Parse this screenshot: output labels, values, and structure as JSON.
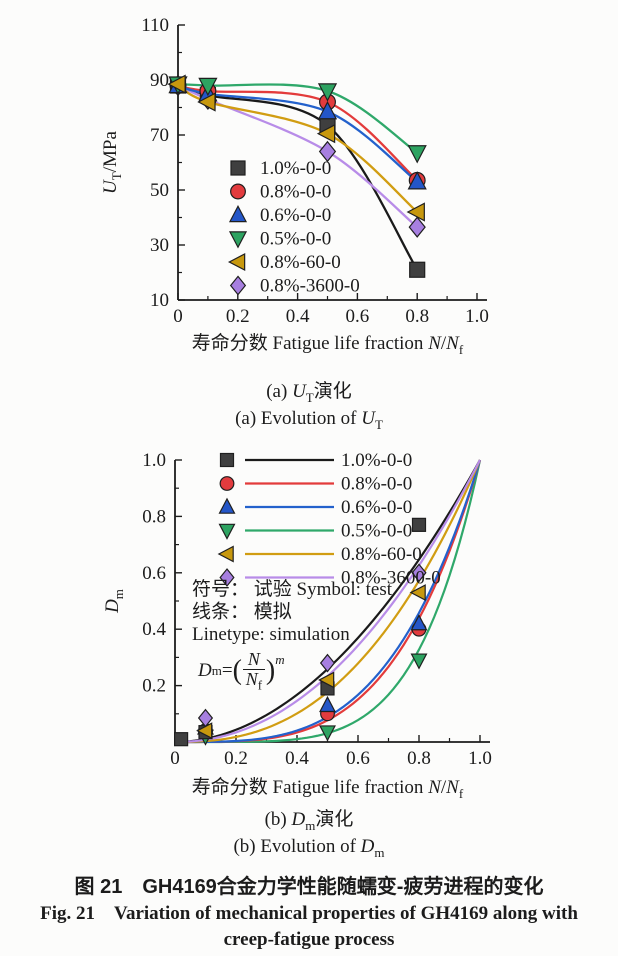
{
  "figure": {
    "background": "#fcfcfb",
    "text_color": "#1c1c1c"
  },
  "chart_data": [
    {
      "id": "a",
      "type": "line",
      "title": "",
      "xlabel_parts": [
        {
          "t": "寿命分数 Fatigue life fraction "
        },
        {
          "t": "N",
          "i": 1
        },
        {
          "t": "/"
        },
        {
          "t": "N",
          "i": 1
        },
        {
          "t": "f",
          "sub": 1
        }
      ],
      "ylabel_parts": [
        {
          "t": "U",
          "i": 1
        },
        {
          "t": "T",
          "sub": 1
        },
        {
          "t": "/MPa"
        }
      ],
      "xlim": [
        0,
        1.0
      ],
      "ylim": [
        10,
        110
      ],
      "grid": false,
      "legend_position": "inside lower-left, markers only",
      "xticks": {
        "major": [
          0,
          0.2,
          0.4,
          0.6,
          0.8,
          1.0
        ],
        "minor": [
          0.1,
          0.3,
          0.5,
          0.7,
          0.9
        ],
        "labels": [
          "0",
          "0.2",
          "0.4",
          "0.6",
          "0.8",
          "1.0"
        ]
      },
      "yticks": {
        "major": [
          10,
          30,
          50,
          70,
          90,
          110
        ],
        "minor": [
          20,
          40,
          60,
          80,
          100
        ],
        "labels": [
          "10",
          "30",
          "50",
          "70",
          "90",
          "110"
        ]
      },
      "x": [
        0,
        0.1,
        0.5,
        0.8
      ],
      "draw_order": [
        0,
        1,
        5,
        2,
        3,
        4
      ],
      "series": [
        {
          "name": "1.0%-0-0",
          "marker": "square",
          "color": "#1a1a1a",
          "marker_color": "#3f3f3f",
          "values": [
            88,
            84.5,
            73.5,
            21
          ]
        },
        {
          "name": "0.8%-0-0",
          "marker": "circle",
          "color": "#e33b3b",
          "marker_color": "#e23b3e",
          "values": [
            88,
            86,
            82,
            53.5
          ]
        },
        {
          "name": "0.6%-0-0",
          "marker": "triangle-up",
          "color": "#2361cc",
          "marker_color": "#2456c8",
          "values": [
            88,
            85,
            78.5,
            53
          ]
        },
        {
          "name": "0.5%-0-0",
          "marker": "triangle-down",
          "color": "#2fa86a",
          "marker_color": "#2da361",
          "values": [
            88.5,
            88,
            86,
            63.5
          ]
        },
        {
          "name": "0.8%-60-0",
          "marker": "triangle-left",
          "color": "#d19d12",
          "marker_color": "#c7980e",
          "values": [
            88.5,
            82,
            70.5,
            42
          ]
        },
        {
          "name": "0.8%-3600-0",
          "marker": "diamond",
          "color": "#b88ce8",
          "marker_color": "#a77fe0",
          "values": [
            88,
            83,
            64,
            36.5
          ]
        }
      ]
    },
    {
      "id": "b",
      "type": "scatter+power-curves",
      "title": "",
      "xlabel_parts": [
        {
          "t": "寿命分数 Fatigue life fraction "
        },
        {
          "t": "N",
          "i": 1
        },
        {
          "t": "/"
        },
        {
          "t": "N",
          "i": 1
        },
        {
          "t": "f",
          "sub": 1
        }
      ],
      "ylabel_parts": [
        {
          "t": "D",
          "i": 1
        },
        {
          "t": "m",
          "sub": 1
        }
      ],
      "xlim": [
        0,
        1.0
      ],
      "ylim": [
        0,
        1.0
      ],
      "grid": false,
      "legend_position": "inside upper-left, marker + line",
      "xticks": {
        "major": [
          0,
          0.2,
          0.4,
          0.6,
          0.8,
          1.0
        ],
        "minor": [
          0.1,
          0.3,
          0.5,
          0.7,
          0.9
        ],
        "labels": [
          "0",
          "0.2",
          "0.4",
          "0.6",
          "0.8",
          "1.0"
        ]
      },
      "yticks": {
        "major": [
          0.2,
          0.4,
          0.6,
          0.8,
          1.0
        ],
        "minor": [
          0.1,
          0.3,
          0.5,
          0.7,
          0.9
        ],
        "labels": [
          "0.2",
          "0.4",
          "0.6",
          "0.8",
          "1.0"
        ]
      },
      "curve_draw_order": [
        3,
        1,
        2,
        4,
        0,
        5
      ],
      "marker_draw_order": [
        3,
        1,
        2,
        0,
        4,
        5
      ],
      "series": [
        {
          "name": "1.0%-0-0",
          "marker": "square",
          "color": "#1a1a1a",
          "marker_color": "#3f3f3f",
          "exponent_m": 1.95,
          "test_points": [
            [
              0.02,
              0.01
            ],
            [
              0.1,
              0.035
            ],
            [
              0.5,
              0.19
            ],
            [
              0.8,
              0.77
            ]
          ]
        },
        {
          "name": "0.8%-0-0",
          "marker": "circle",
          "color": "#e33b3b",
          "marker_color": "#e23b3e",
          "exponent_m": 3.7,
          "test_points": [
            [
              0.1,
              0.04
            ],
            [
              0.5,
              0.1
            ],
            [
              0.8,
              0.4
            ]
          ]
        },
        {
          "name": "0.6%-0-0",
          "marker": "triangle-up",
          "color": "#2361cc",
          "marker_color": "#2456c8",
          "exponent_m": 3.5,
          "test_points": [
            [
              0.1,
              0.05
            ],
            [
              0.5,
              0.13
            ],
            [
              0.8,
              0.42
            ]
          ]
        },
        {
          "name": "0.5%-0-0",
          "marker": "triangle-down",
          "color": "#2fa86a",
          "marker_color": "#2da361",
          "exponent_m": 5.0,
          "test_points": [
            [
              0.1,
              0.02
            ],
            [
              0.5,
              0.035
            ],
            [
              0.8,
              0.29
            ]
          ]
        },
        {
          "name": "0.8%-60-0",
          "marker": "triangle-left",
          "color": "#d19d12",
          "marker_color": "#c7980e",
          "exponent_m": 2.5,
          "test_points": [
            [
              0.1,
              0.04
            ],
            [
              0.5,
              0.22
            ],
            [
              0.8,
              0.53
            ]
          ]
        },
        {
          "name": "0.8%-3600-0",
          "marker": "diamond",
          "color": "#b88ce8",
          "marker_color": "#a77fe0",
          "exponent_m": 2.1,
          "test_points": [
            [
              0.1,
              0.085
            ],
            [
              0.5,
              0.28
            ],
            [
              0.8,
              0.6
            ]
          ]
        }
      ],
      "legend_notes": [
        "符号： 试验 Symbol: test",
        "线条： 模拟",
        "Linetype: simulation"
      ],
      "formula": {
        "lhs": "D",
        "lhs_sub": "m",
        "eq": "=",
        "open": "(",
        "num": "N",
        "den": "N",
        "den_sub": "f",
        "close": ")",
        "sup": "m"
      }
    }
  ],
  "captions": {
    "a_zh": {
      "pre": "(a) ",
      "var": "U",
      "sub": "T",
      "post": "演化"
    },
    "a_en": {
      "pre": "(a) Evolution of ",
      "var": "U",
      "sub": "T",
      "post": ""
    },
    "b_zh": {
      "pre": "(b) ",
      "var": "D",
      "sub": "m",
      "post": "演化"
    },
    "b_en": {
      "pre": "(b) Evolution of ",
      "var": "D",
      "sub": "m",
      "post": ""
    },
    "fig_zh": "图 21　GH4169合金力学性能随蠕变-疲劳进程的变化",
    "fig_en": "Fig. 21　Variation of mechanical properties of GH4169 along with creep-fatigue process"
  }
}
